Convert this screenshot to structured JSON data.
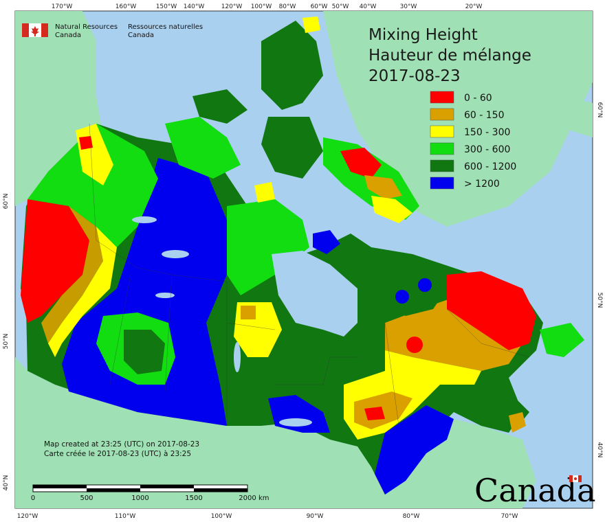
{
  "title": {
    "line1": "Mixing Height",
    "line2": "Hauteur de mélange",
    "date": "2017-08-23"
  },
  "agency": {
    "en_line1": "Natural Resources",
    "en_line2": "Canada",
    "fr_line1": "Ressources naturelles",
    "fr_line2": "Canada",
    "flag_icon": "canada-flag-icon"
  },
  "legend": [
    {
      "label": "0 - 60",
      "color": "#ff0000"
    },
    {
      "label": "60 - 150",
      "color": "#daa000"
    },
    {
      "label": "150 - 300",
      "color": "#ffff00"
    },
    {
      "label": "300 - 600",
      "color": "#11dd11"
    },
    {
      "label": "600 - 1200",
      "color": "#117711"
    },
    {
      "label": "> 1200",
      "color": "#0000ee"
    }
  ],
  "top_ticks": [
    "170°W",
    "160°W",
    "150°W",
    "140°W",
    "120°W",
    "100°W",
    "80°W",
    "60°W",
    "50°W",
    "40°W",
    "30°W",
    "20°W"
  ],
  "bottom_ticks": [
    "120°W",
    "110°W",
    "100°W",
    "90°W",
    "80°W",
    "70°W"
  ],
  "left_ticks": [
    "60°N",
    "50°N",
    "40°N"
  ],
  "right_ticks": [
    "60°N",
    "50°N",
    "40°N"
  ],
  "scale_bar": {
    "labels": [
      "0",
      "500",
      "1000",
      "1500",
      "2000"
    ],
    "unit": "km"
  },
  "notes": {
    "en": "Map created at 23:25 (UTC) on 2017-08-23",
    "fr": "Carte créée le 2017-08-23 (UTC) à 23:25"
  },
  "wordmark": "Canada",
  "colors": {
    "ocean": "#aad0f0",
    "land": "#9fe0b4",
    "water_in_canada": "#aad0f0"
  }
}
